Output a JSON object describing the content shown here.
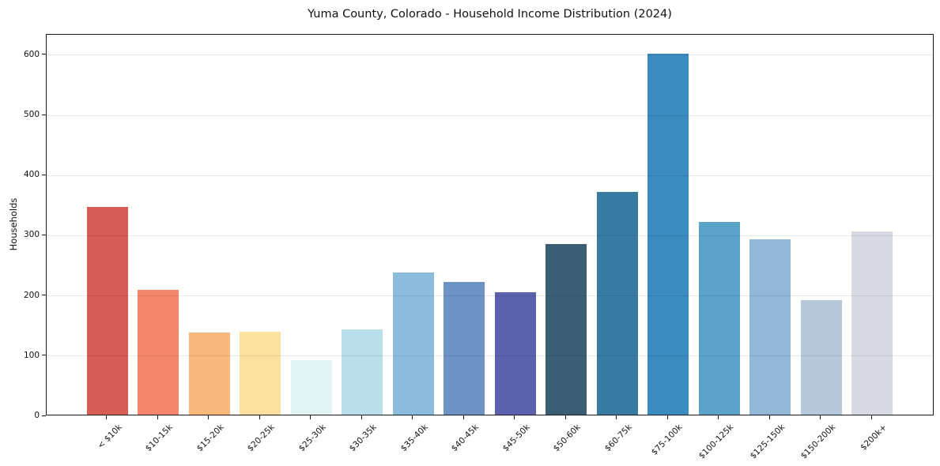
{
  "chart_data": {
    "type": "bar",
    "title": "Yuma County, Colorado - Household Income Distribution (2024)",
    "xlabel": "",
    "ylabel": "Households",
    "categories": [
      "< $10k",
      "$10-15k",
      "$15-20k",
      "$20-25k",
      "$25-30k",
      "$30-35k",
      "$35-40k",
      "$40-45k",
      "$45-50k",
      "$50-60k",
      "$60-75k",
      "$75-100k",
      "$100-125k",
      "$125-150k",
      "$150-200k",
      "$200k+"
    ],
    "values": [
      345,
      207,
      136,
      138,
      90,
      142,
      236,
      220,
      204,
      283,
      370,
      600,
      320,
      292,
      190,
      304
    ],
    "bar_colors": [
      "#d65d55",
      "#f4876b",
      "#f9b87c",
      "#fbe09e",
      "#e3f2f5",
      "#b9dfec",
      "#8bbcdb",
      "#6c93c4",
      "#5b61ac",
      "#3a5f75",
      "#377ba3",
      "#398bc0",
      "#5ba3c8",
      "#92b7d7",
      "#b5c8dc",
      "#d7dae5"
    ],
    "yticks": [
      0,
      100,
      200,
      300,
      400,
      500,
      600
    ],
    "ylim": [
      0,
      634
    ],
    "grid": "horizontal-over-bars",
    "legend": "none",
    "x_tick_rotation_deg": 45,
    "axis_color": "#1a1a1a",
    "grid_color": "rgba(0,0,0,0.085)",
    "background": "#ffffff"
  }
}
